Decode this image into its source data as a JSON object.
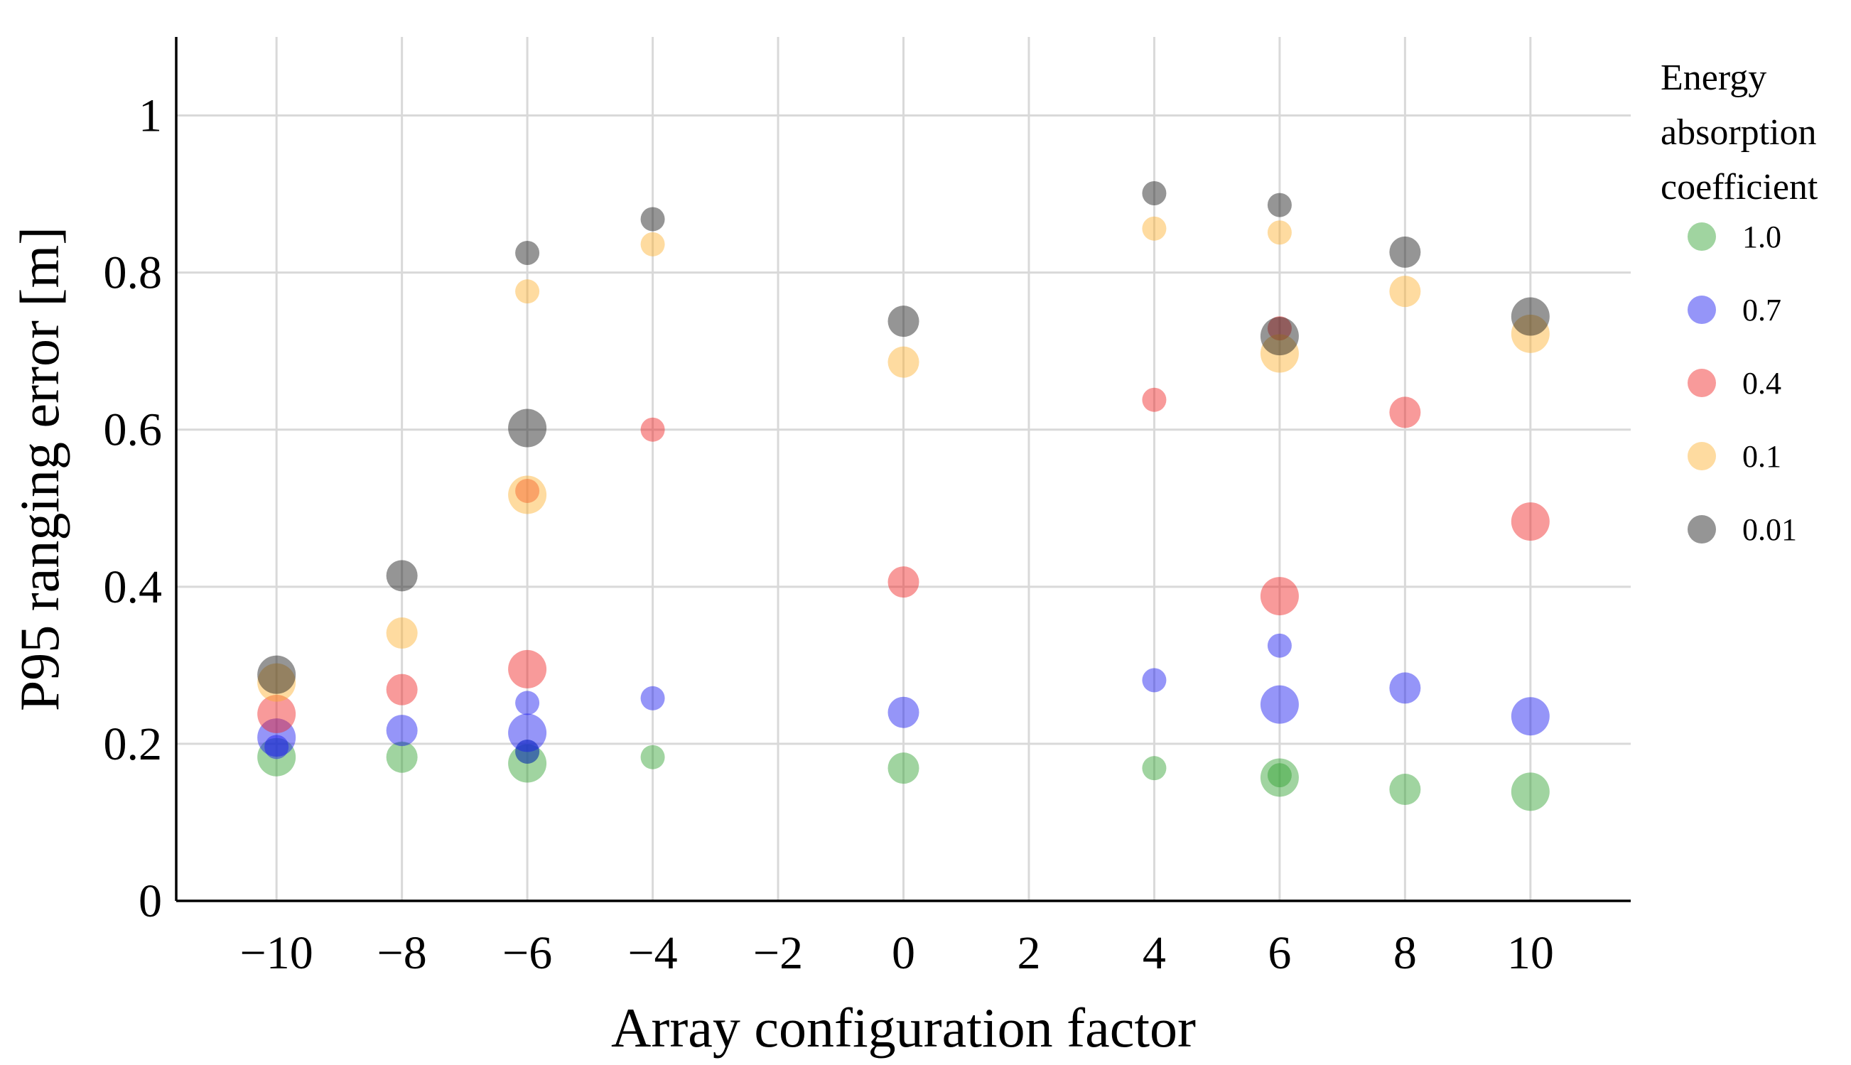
{
  "chart_data": {
    "type": "scatter",
    "title": "",
    "xlabel": "Array configuration factor",
    "ylabel": "P95 ranging error [m]",
    "xlim": [
      -11.6,
      11.6
    ],
    "ylim": [
      0,
      1.1
    ],
    "xticks": [
      -10,
      -8,
      -6,
      -4,
      -2,
      0,
      2,
      4,
      6,
      8,
      10
    ],
    "xtick_labels": [
      "−10",
      "−8",
      "−6",
      "−4",
      "−2",
      "0",
      "2",
      "4",
      "6",
      "8",
      "10"
    ],
    "yticks": [
      0,
      0.2,
      0.4,
      0.6,
      0.8,
      1
    ],
    "ytick_labels": [
      "0",
      "0.2",
      "0.4",
      "0.6",
      "0.8",
      "1"
    ],
    "grid": true,
    "marker_opacity": 0.45,
    "legend": {
      "title": [
        "Energy",
        "absorption",
        "coefficient"
      ],
      "position": "right"
    },
    "series": [
      {
        "name": "1.0",
        "color": "#2ca02c",
        "points": [
          {
            "x": -10,
            "y": 0.183,
            "size": 3
          },
          {
            "x": -8,
            "y": 0.183,
            "size": 2
          },
          {
            "x": -6,
            "y": 0.175,
            "size": 3
          },
          {
            "x": -6,
            "y": 0.19,
            "size": 1
          },
          {
            "x": -4,
            "y": 0.183,
            "size": 1
          },
          {
            "x": 0,
            "y": 0.169,
            "size": 2
          },
          {
            "x": 4,
            "y": 0.169,
            "size": 1
          },
          {
            "x": 6,
            "y": 0.157,
            "size": 3
          },
          {
            "x": 6,
            "y": 0.16,
            "size": 1
          },
          {
            "x": 8,
            "y": 0.142,
            "size": 2
          },
          {
            "x": 10,
            "y": 0.139,
            "size": 3
          }
        ]
      },
      {
        "name": "0.7",
        "color": "#1414f0",
        "points": [
          {
            "x": -10,
            "y": 0.208,
            "size": 3
          },
          {
            "x": -10,
            "y": 0.196,
            "size": 1
          },
          {
            "x": -8,
            "y": 0.217,
            "size": 2
          },
          {
            "x": -6,
            "y": 0.214,
            "size": 3
          },
          {
            "x": -6,
            "y": 0.252,
            "size": 1
          },
          {
            "x": -6,
            "y": 0.19,
            "size": 1
          },
          {
            "x": -4,
            "y": 0.258,
            "size": 1
          },
          {
            "x": 0,
            "y": 0.24,
            "size": 2
          },
          {
            "x": 4,
            "y": 0.281,
            "size": 1
          },
          {
            "x": 6,
            "y": 0.325,
            "size": 1
          },
          {
            "x": 6,
            "y": 0.25,
            "size": 3
          },
          {
            "x": 8,
            "y": 0.271,
            "size": 2
          },
          {
            "x": 10,
            "y": 0.235,
            "size": 3
          }
        ]
      },
      {
        "name": "0.4",
        "color": "#f01e1e",
        "points": [
          {
            "x": -10,
            "y": 0.238,
            "size": 3
          },
          {
            "x": -8,
            "y": 0.269,
            "size": 2
          },
          {
            "x": -6,
            "y": 0.295,
            "size": 3
          },
          {
            "x": -6,
            "y": 0.522,
            "size": 1
          },
          {
            "x": -4,
            "y": 0.6,
            "size": 1
          },
          {
            "x": 0,
            "y": 0.406,
            "size": 2
          },
          {
            "x": 4,
            "y": 0.638,
            "size": 1
          },
          {
            "x": 6,
            "y": 0.388,
            "size": 3
          },
          {
            "x": 6,
            "y": 0.729,
            "size": 1
          },
          {
            "x": 8,
            "y": 0.622,
            "size": 2
          },
          {
            "x": 10,
            "y": 0.483,
            "size": 3
          }
        ]
      },
      {
        "name": "0.1",
        "color": "#fdb02c",
        "points": [
          {
            "x": -10,
            "y": 0.278,
            "size": 3
          },
          {
            "x": -8,
            "y": 0.341,
            "size": 2
          },
          {
            "x": -6,
            "y": 0.517,
            "size": 3
          },
          {
            "x": -6,
            "y": 0.776,
            "size": 1
          },
          {
            "x": -4,
            "y": 0.836,
            "size": 1
          },
          {
            "x": 0,
            "y": 0.686,
            "size": 2
          },
          {
            "x": 4,
            "y": 0.856,
            "size": 1
          },
          {
            "x": 6,
            "y": 0.851,
            "size": 1
          },
          {
            "x": 6,
            "y": 0.697,
            "size": 3
          },
          {
            "x": 8,
            "y": 0.776,
            "size": 2
          },
          {
            "x": 10,
            "y": 0.722,
            "size": 3
          }
        ]
      },
      {
        "name": "0.01",
        "color": "#141414",
        "points": [
          {
            "x": -10,
            "y": 0.288,
            "size": 3
          },
          {
            "x": -8,
            "y": 0.414,
            "size": 2
          },
          {
            "x": -6,
            "y": 0.602,
            "size": 3
          },
          {
            "x": -6,
            "y": 0.825,
            "size": 1
          },
          {
            "x": -4,
            "y": 0.868,
            "size": 1
          },
          {
            "x": 0,
            "y": 0.738,
            "size": 2
          },
          {
            "x": 4,
            "y": 0.901,
            "size": 1
          },
          {
            "x": 6,
            "y": 0.886,
            "size": 1
          },
          {
            "x": 6,
            "y": 0.719,
            "size": 3
          },
          {
            "x": 8,
            "y": 0.826,
            "size": 2
          },
          {
            "x": 10,
            "y": 0.744,
            "size": 3
          }
        ]
      }
    ]
  }
}
